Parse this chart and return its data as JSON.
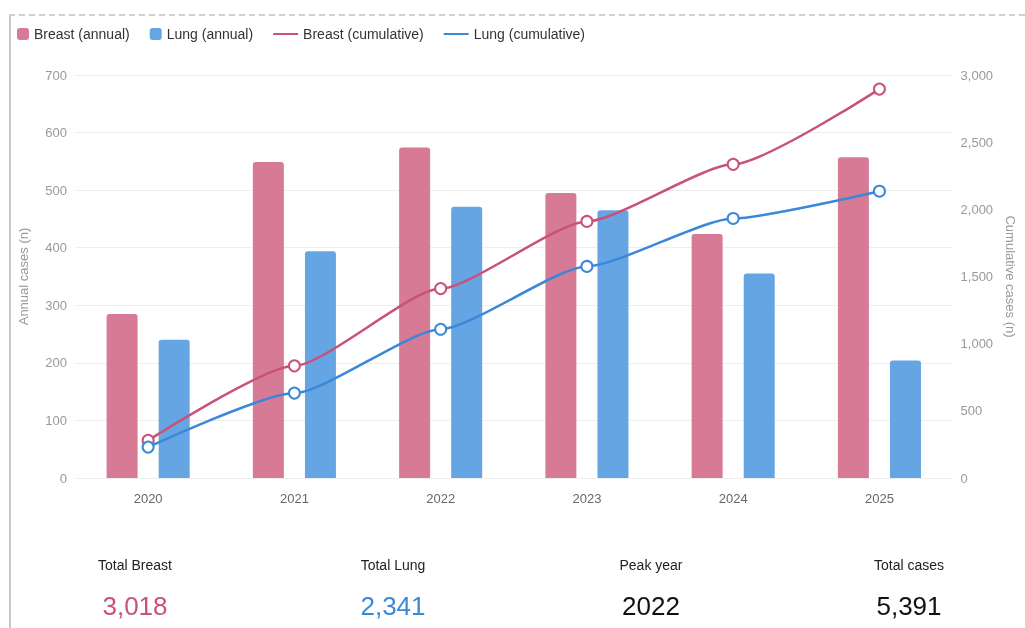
{
  "chart_data": [
    {
      "type": "bar",
      "categories": [
        "2020",
        "2021",
        "2022",
        "2023",
        "2024",
        "2025"
      ],
      "series": [
        {
          "name": "Breast (annual)",
          "type": "bar",
          "color": "#d67a95",
          "values": [
            285,
            549,
            574,
            495,
            424,
            557
          ]
        },
        {
          "name": "Lung (annual)",
          "type": "bar",
          "color": "#66a5e4",
          "values": [
            240,
            394,
            471,
            465,
            355,
            204
          ]
        },
        {
          "name": "Breast (cumulative)",
          "type": "line",
          "axis": "y2",
          "color": "#c9527a",
          "values": [
            280,
            835,
            1410,
            1910,
            2335,
            2895
          ]
        },
        {
          "name": "Lung (cumulative)",
          "type": "line",
          "axis": "y2",
          "color": "#3b87d8",
          "values": [
            230,
            632,
            1107,
            1575,
            1932,
            2135
          ]
        }
      ],
      "ylabel": "Annual cases (n)",
      "y2label": "Cumulative cases (n)",
      "ylim": [
        0,
        700
      ],
      "yticks": [
        0,
        100,
        200,
        300,
        400,
        500,
        600,
        700
      ],
      "y2lim": [
        0,
        3000
      ],
      "y2ticks": [
        0,
        500,
        {
          "value": 1000,
          "label": "1,000"
        },
        {
          "value": 1500,
          "label": "1,500"
        },
        {
          "value": 2000,
          "label": "2,000"
        },
        {
          "value": 2500,
          "label": "2,500"
        },
        {
          "value": 3000,
          "label": "3,000"
        }
      ],
      "grid": "y",
      "legend": "top left",
      "marker": "circle"
    },
    {
      "type": "other",
      "annotations": [
        "Total Breast",
        "3,018",
        "Total Lung",
        "2,341",
        "Peak year",
        "2022",
        "Total cases",
        "5,391"
      ],
      "colors": [
        "#c9527a",
        "#3b87d8",
        "#111111",
        "#111111"
      ]
    }
  ]
}
